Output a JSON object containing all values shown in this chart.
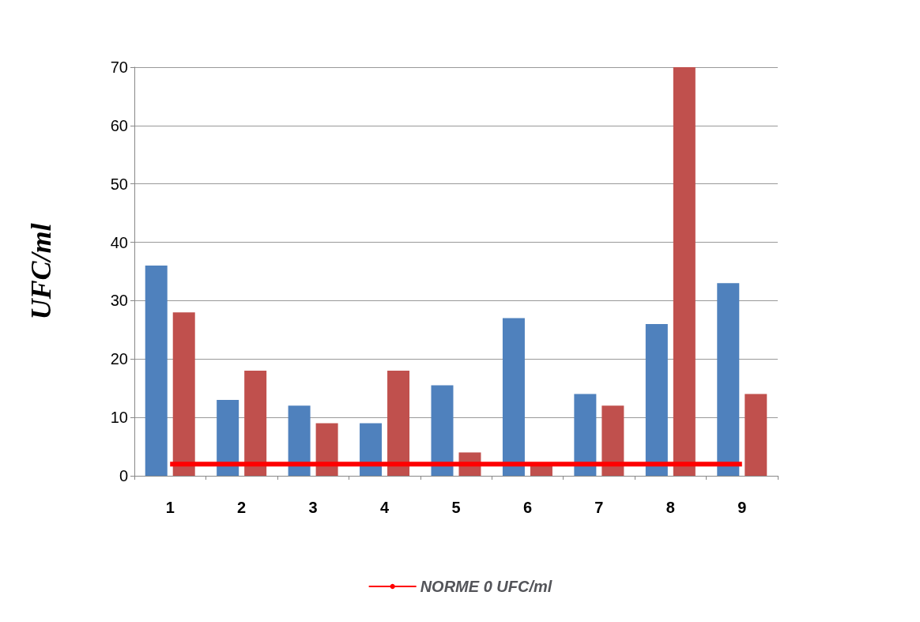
{
  "chart_data": {
    "type": "bar",
    "ylabel": "UFC/ml",
    "categories": [
      "1",
      "2",
      "3",
      "4",
      "5",
      "6",
      "7",
      "8",
      "9"
    ],
    "series": [
      {
        "color": "#4f81bd",
        "values": [
          36,
          13,
          12,
          9,
          15.5,
          27,
          14,
          26,
          33
        ]
      },
      {
        "color": "#c0504d",
        "values": [
          28,
          18,
          9,
          18,
          4,
          2,
          12,
          70,
          14
        ]
      },
      {
        "type": "line",
        "name": "NORME 0 UFC/ml",
        "color": "#ff0000",
        "values": [
          2,
          2,
          2,
          2,
          2,
          2,
          2,
          2,
          2
        ],
        "marker": "none"
      }
    ],
    "ylim": [
      0,
      70
    ],
    "yticks": [
      0,
      10,
      20,
      30,
      40,
      50,
      60,
      70
    ],
    "grid": "y",
    "legend": "bottom"
  }
}
